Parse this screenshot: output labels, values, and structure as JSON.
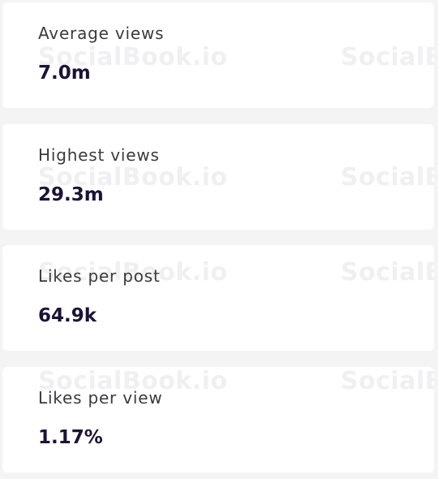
{
  "watermark": "SocialBook.io",
  "cards": [
    {
      "label": "Average views",
      "value": "7.0m"
    },
    {
      "label": "Highest views",
      "value": "29.3m"
    },
    {
      "label": "Likes per post",
      "value": "64.9k"
    },
    {
      "label": "Likes per view",
      "value": "1.17%"
    }
  ]
}
